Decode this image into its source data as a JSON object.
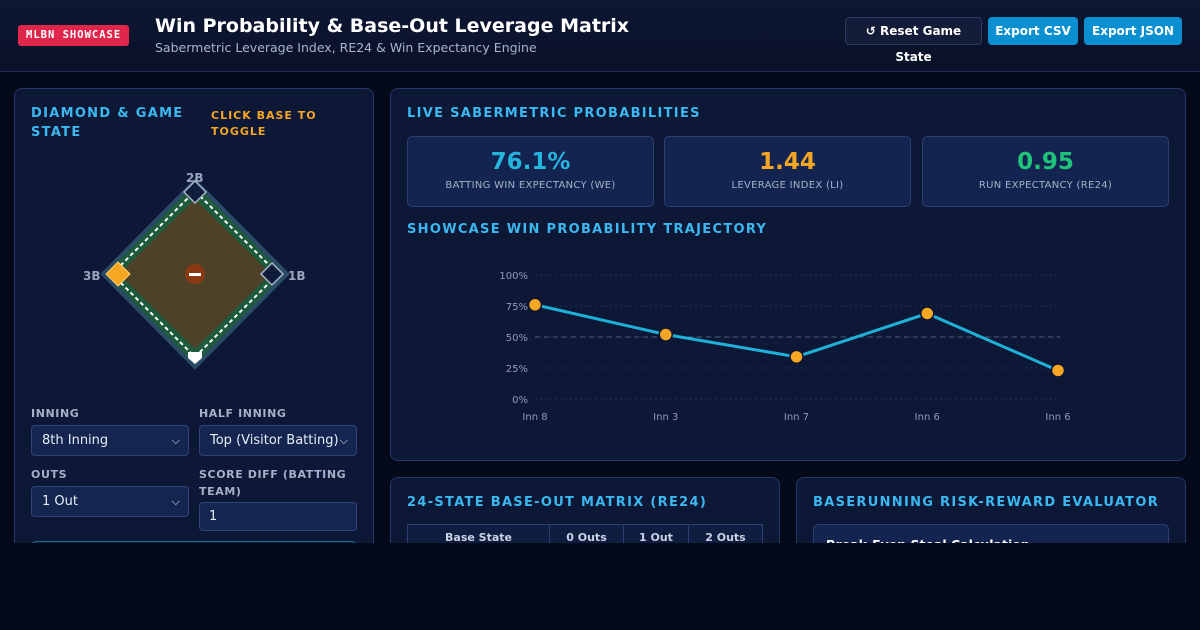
{
  "header": {
    "badge": "MLBN SHOWCASE",
    "title": "Win Probability & Base-Out Leverage Matrix",
    "subtitle": "Sabermetric Leverage Index, RE24 & Win Expectancy Engine",
    "buttons": {
      "reset": "↺ Reset Game State",
      "csv": "Export CSV",
      "json": "Export JSON"
    }
  },
  "left_panel": {
    "title": "DIAMOND & GAME STATE",
    "hint": "CLICK BASE TO TOGGLE",
    "bases": {
      "second": "2B",
      "first": "1B",
      "third": "3B"
    },
    "runners": {
      "first": false,
      "second": false,
      "third": true
    },
    "fields": {
      "inning_label": "INNING",
      "inning_value": "8th Inning",
      "half_label": "HALF INNING",
      "half_value": "Top (Visitor Batting)",
      "outs_label": "OUTS",
      "outs_value": "1 Out",
      "score_label": "SCORE DIFF (BATTING TEAM)",
      "score_value": "1"
    }
  },
  "probabilities": {
    "title": "LIVE SABERMETRIC PROBABILITIES",
    "stats": [
      {
        "value": "76.1%",
        "label": "BATTING WIN EXPECTANCY (WE)",
        "color": "#27b4dc"
      },
      {
        "value": "1.44",
        "label": "LEVERAGE INDEX (LI)",
        "color": "#f5a623"
      },
      {
        "value": "0.95",
        "label": "RUN EXPECTANCY (RE24)",
        "color": "#1fc47a"
      }
    ],
    "trajectory_title": "SHOWCASE WIN PROBABILITY TRAJECTORY"
  },
  "chart_data": {
    "type": "line",
    "categories": [
      "Inn 8",
      "Inn 3",
      "Inn 7",
      "Inn 6",
      "Inn 6"
    ],
    "values": [
      76,
      52,
      34,
      69,
      23
    ],
    "yticks": [
      "100%",
      "75%",
      "50%",
      "25%",
      "0%"
    ],
    "ylim": [
      0,
      100
    ],
    "reference_line": 50,
    "line_color": "#1fb0d8",
    "marker_color": "#f5a623",
    "grid": true
  },
  "matrix": {
    "title": "24-STATE BASE-OUT MATRIX (RE24)",
    "headers": [
      "Base State",
      "0 Outs",
      "1 Out",
      "2 Outs"
    ]
  },
  "risk": {
    "title": "BASERUNNING RISK-REWARD EVALUATOR",
    "box_title": "Break-Even Steal Calculation"
  }
}
